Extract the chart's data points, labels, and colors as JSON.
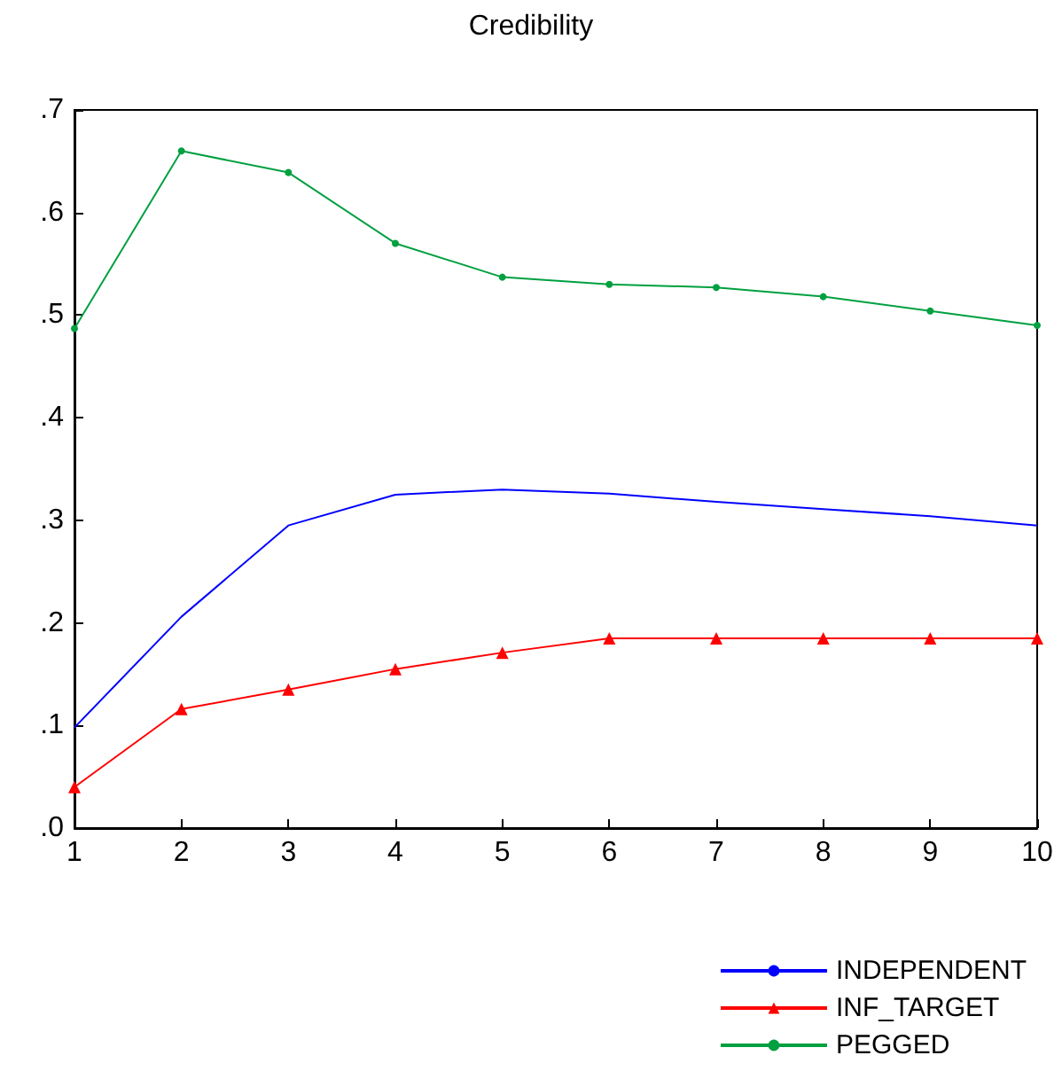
{
  "chart_data": {
    "type": "line",
    "title": "Credibility",
    "x": [
      1,
      2,
      3,
      4,
      5,
      6,
      7,
      8,
      9,
      10
    ],
    "xlim": [
      1,
      10
    ],
    "xticks": [
      1,
      2,
      3,
      4,
      5,
      6,
      7,
      8,
      9,
      10
    ],
    "ylim": [
      0,
      0.7
    ],
    "yticks": [
      {
        "value": 0,
        "label": ".0"
      },
      {
        "value": 0.1,
        "label": ".1"
      },
      {
        "value": 0.2,
        "label": ".2"
      },
      {
        "value": 0.3,
        "label": ".3"
      },
      {
        "value": 0.4,
        "label": ".4"
      },
      {
        "value": 0.5,
        "label": ".5"
      },
      {
        "value": 0.6,
        "label": ".6"
      },
      {
        "value": 0.7,
        "label": ".7"
      }
    ],
    "grid": false,
    "legend": "bottom right",
    "line_style": "solid",
    "series": [
      {
        "name": "INDEPENDENT",
        "color": "#0000ff",
        "marker": "none",
        "values": [
          0.098,
          0.206,
          0.295,
          0.325,
          0.33,
          0.326,
          0.318,
          0.311,
          0.304,
          0.295
        ]
      },
      {
        "name": "INF_TARGET",
        "color": "#ff0000",
        "marker": "triangle",
        "values": [
          0.04,
          0.116,
          0.135,
          0.155,
          0.171,
          0.185,
          0.185,
          0.185,
          0.185,
          0.185
        ]
      },
      {
        "name": "PEGGED",
        "color": "#00a040",
        "marker": "circle",
        "values": [
          0.487,
          0.66,
          0.639,
          0.57,
          0.537,
          0.53,
          0.527,
          0.518,
          0.504,
          0.49
        ]
      }
    ]
  }
}
